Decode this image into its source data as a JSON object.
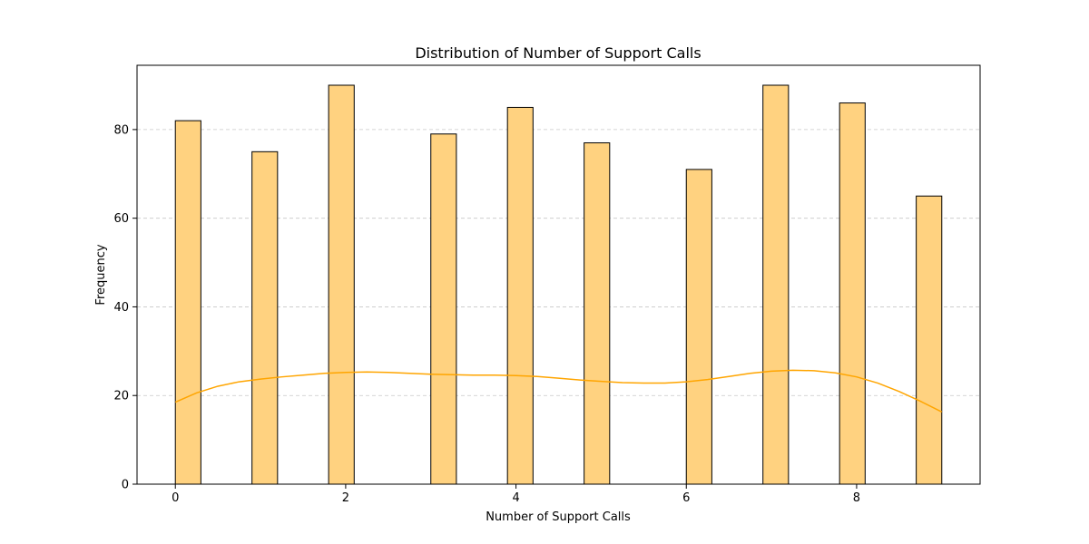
{
  "chart_data": {
    "type": "bar",
    "title": "Distribution of Number of Support Calls",
    "xlabel": "Number of Support Calls",
    "ylabel": "Frequency",
    "xlim": [
      -0.45,
      9.45
    ],
    "ylim": [
      0,
      94.5
    ],
    "x_ticks": [
      0,
      2,
      4,
      6,
      8
    ],
    "y_ticks": [
      0,
      20,
      40,
      60,
      80
    ],
    "grid": "y-dashed",
    "bar_color": "#ffd280",
    "bar_edge_color": "#000000",
    "kde_color": "#ffa500",
    "bars": [
      {
        "x_start": 0.0,
        "x_end": 0.3,
        "value": 82
      },
      {
        "x_start": 0.9,
        "x_end": 1.2,
        "value": 75
      },
      {
        "x_start": 1.8,
        "x_end": 2.1,
        "value": 90
      },
      {
        "x_start": 3.0,
        "x_end": 3.3,
        "value": 79
      },
      {
        "x_start": 3.9,
        "x_end": 4.2,
        "value": 85
      },
      {
        "x_start": 4.8,
        "x_end": 5.1,
        "value": 77
      },
      {
        "x_start": 6.0,
        "x_end": 6.3,
        "value": 71
      },
      {
        "x_start": 6.9,
        "x_end": 7.2,
        "value": 90
      },
      {
        "x_start": 7.8,
        "x_end": 8.1,
        "value": 86
      },
      {
        "x_start": 8.7,
        "x_end": 9.0,
        "value": 65
      }
    ],
    "kde": {
      "x": [
        0.0,
        0.25,
        0.5,
        0.75,
        1.0,
        1.25,
        1.5,
        1.75,
        2.0,
        2.25,
        2.5,
        2.75,
        3.0,
        3.25,
        3.5,
        3.75,
        4.0,
        4.25,
        4.5,
        4.75,
        5.0,
        5.25,
        5.5,
        5.75,
        6.0,
        6.25,
        6.5,
        6.75,
        7.0,
        7.25,
        7.5,
        7.75,
        8.0,
        8.25,
        8.5,
        8.75,
        9.0
      ],
      "y": [
        18.5,
        20.6,
        22.1,
        23.1,
        23.7,
        24.2,
        24.6,
        25.0,
        25.2,
        25.3,
        25.2,
        25.0,
        24.8,
        24.7,
        24.6,
        24.6,
        24.5,
        24.3,
        23.9,
        23.5,
        23.2,
        22.9,
        22.8,
        22.8,
        23.1,
        23.6,
        24.3,
        25.0,
        25.5,
        25.7,
        25.6,
        25.1,
        24.2,
        22.8,
        20.9,
        18.7,
        16.3
      ]
    }
  }
}
